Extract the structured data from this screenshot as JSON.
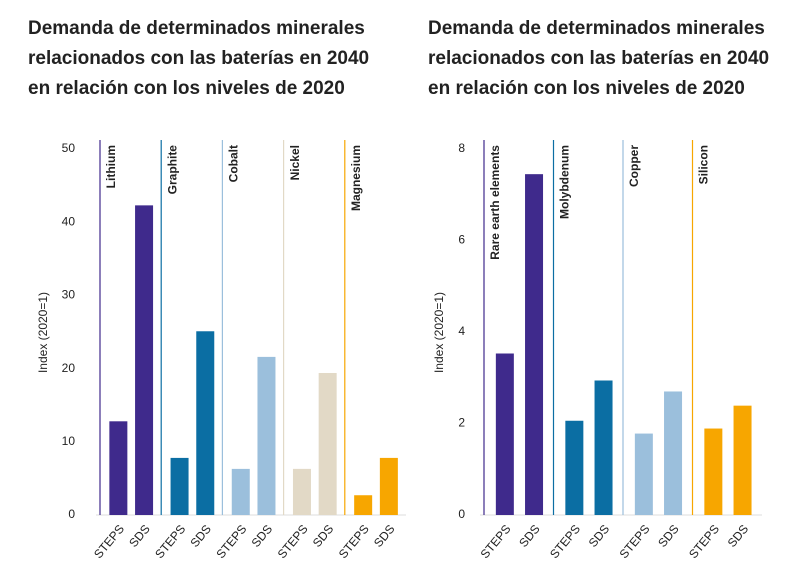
{
  "chart_data": [
    {
      "type": "bar",
      "title": "Demanda de determinados minerales relacionados con las baterías en 2040 en relación con los niveles de 2020",
      "y_label": "Index (2020=1)",
      "categories": [
        "STEPS",
        "SDS"
      ],
      "series": [
        {
          "name": "Lithium",
          "color": "#3f2a8c",
          "values": [
            12.8,
            42.3
          ]
        },
        {
          "name": "Graphite",
          "color": "#0b6ea3",
          "values": [
            7.8,
            25.1
          ]
        },
        {
          "name": "Cobalt",
          "color": "#9bbfdc",
          "values": [
            6.3,
            21.6
          ]
        },
        {
          "name": "Nickel",
          "color": "#e2d9c6",
          "values": [
            6.3,
            19.4
          ]
        },
        {
          "name": "Magnesium",
          "color": "#f7a600",
          "values": [
            2.7,
            7.8
          ]
        }
      ],
      "ylim": [
        0,
        50
      ],
      "yticks": [
        0,
        10,
        20,
        30,
        40,
        50
      ]
    },
    {
      "type": "bar",
      "title": "Demanda de determinados minerales relacionados con las baterías en 2040 en relación con los niveles de 2020",
      "y_label": "Index (2020=1)",
      "categories": [
        "STEPS",
        "SDS"
      ],
      "series": [
        {
          "name": "Rare earth elements",
          "color": "#3f2a8c",
          "values": [
            3.53,
            7.45
          ]
        },
        {
          "name": "Molybdenum",
          "color": "#0b6ea3",
          "values": [
            2.06,
            2.94
          ]
        },
        {
          "name": "Copper",
          "color": "#9bbfdc",
          "values": [
            1.78,
            2.7
          ]
        },
        {
          "name": "Silicon",
          "color": "#f7a600",
          "values": [
            1.89,
            2.39
          ]
        }
      ],
      "ylim": [
        0,
        8
      ],
      "yticks": [
        0,
        2,
        4,
        6,
        8
      ]
    }
  ]
}
